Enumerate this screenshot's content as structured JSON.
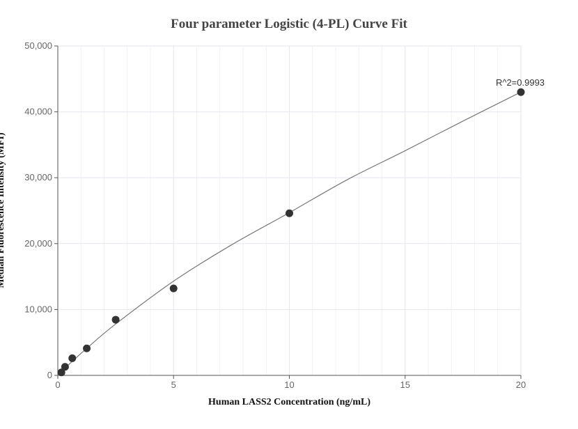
{
  "chart_data": {
    "type": "scatter",
    "title": "Four parameter Logistic (4-PL) Curve Fit",
    "xlabel": "Human LASS2 Concentration (ng/mL)",
    "ylabel": "Median Fluorescence Intensity (MFI)",
    "xlim": [
      0,
      20
    ],
    "ylim": [
      0,
      50000
    ],
    "x_ticks": [
      0,
      5,
      10,
      15,
      20
    ],
    "x_tick_labels": [
      "0",
      "5",
      "10",
      "15",
      "20"
    ],
    "y_ticks": [
      0,
      10000,
      20000,
      30000,
      40000,
      50000
    ],
    "y_tick_labels": [
      "0",
      "10,000",
      "20,000",
      "30,000",
      "40,000",
      "50,000"
    ],
    "grid": true,
    "series": [
      {
        "kind": "points",
        "x": [
          0.156,
          0.313,
          0.625,
          1.25,
          2.5,
          5,
          10,
          20
        ],
        "y": [
          450,
          1300,
          2600,
          4100,
          8450,
          13200,
          24600,
          43000
        ]
      },
      {
        "kind": "fit-curve",
        "x": [
          0,
          0.156,
          0.313,
          0.625,
          1.25,
          2.5,
          5,
          7.5,
          10,
          12.5,
          15,
          17.5,
          20
        ],
        "y": [
          0,
          550,
          1090,
          2130,
          4100,
          7800,
          14300,
          19800,
          24700,
          29700,
          34100,
          38600,
          43000
        ]
      }
    ],
    "annotations": [
      {
        "text": "R^2=0.9993",
        "x": 20,
        "y": 43000
      }
    ],
    "colors": {
      "points": "#333333",
      "curve": "#777777",
      "grid": "#e6e6ee",
      "axis": "#555555"
    }
  }
}
